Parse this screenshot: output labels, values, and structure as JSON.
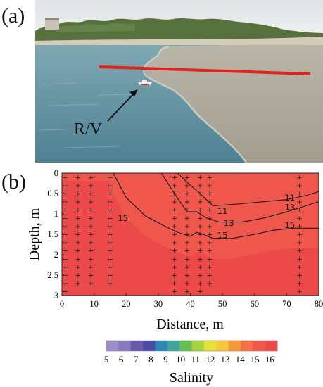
{
  "panel_a": {
    "label": "(a)",
    "annotation": "R/V",
    "colors": {
      "sky": "#e7e9ea",
      "trees": "#55703c",
      "beach": "#cfc7b4",
      "blue_water": "#5d8fa0",
      "turbid_water": "#a7a497",
      "transect": "#e0231a"
    }
  },
  "panel_b": {
    "label": "(b)"
  },
  "chart_data": {
    "type": "heatmap",
    "xlabel": "Distance, m",
    "ylabel": "Depth, m",
    "xlim": [
      0,
      80
    ],
    "ylim": [
      3,
      0
    ],
    "xticks": [
      0,
      10,
      20,
      30,
      40,
      50,
      60,
      70,
      80
    ],
    "yticks": [
      0,
      0.5,
      1,
      1.5,
      2,
      2.5,
      3
    ],
    "contour_labels": [
      {
        "text": "15",
        "x": 19,
        "y": 1.1
      },
      {
        "text": "11",
        "x": 50,
        "y": 0.93
      },
      {
        "text": "13",
        "x": 52,
        "y": 1.22
      },
      {
        "text": "15",
        "x": 50,
        "y": 1.53
      },
      {
        "text": "11",
        "x": 71,
        "y": 0.6
      },
      {
        "text": "13",
        "x": 71,
        "y": 0.84
      },
      {
        "text": "15",
        "x": 71,
        "y": 1.28
      }
    ],
    "contours": [
      {
        "value": 11,
        "x": [
          36,
          40,
          43,
          47,
          56,
          63,
          70,
          76,
          80
        ],
        "y": [
          0.0,
          0.3,
          0.5,
          0.8,
          0.75,
          0.7,
          0.65,
          0.55,
          0.45
        ]
      },
      {
        "value": 13,
        "x": [
          31,
          35,
          39,
          42,
          45,
          49,
          56,
          63,
          70,
          76,
          80
        ],
        "y": [
          0.0,
          0.5,
          0.95,
          0.95,
          1.1,
          1.2,
          1.2,
          1.1,
          0.95,
          0.8,
          0.7
        ]
      },
      {
        "value": 15,
        "x": [
          16,
          20,
          26,
          32,
          36,
          40,
          42,
          44,
          47,
          53,
          60,
          66,
          72,
          80
        ],
        "y": [
          0.0,
          0.6,
          1.05,
          1.3,
          1.45,
          1.55,
          1.45,
          1.5,
          1.6,
          1.6,
          1.5,
          1.4,
          1.35,
          1.35
        ]
      }
    ],
    "sample_profiles": [
      {
        "x": 1,
        "depths": [
          0.1,
          0.3,
          0.5,
          0.7,
          0.9,
          1.1,
          1.3,
          1.5,
          1.7,
          1.9,
          2.1,
          2.3,
          2.5,
          2.7,
          2.9
        ]
      },
      {
        "x": 5,
        "depths": [
          0.1,
          0.3,
          0.5,
          0.7,
          0.9,
          1.1,
          1.3,
          1.5,
          1.7,
          1.9,
          2.1,
          2.3,
          2.5,
          2.7
        ]
      },
      {
        "x": 9,
        "depths": [
          0.1,
          0.3,
          0.5,
          0.7,
          0.9,
          1.1,
          1.3,
          1.5,
          1.7,
          1.9,
          2.1,
          2.3,
          2.5,
          2.7
        ]
      },
      {
        "x": 15,
        "depths": [
          0.1,
          0.3,
          0.5,
          0.7,
          0.9,
          1.1,
          1.3,
          1.5,
          1.7,
          1.9,
          2.1,
          2.3,
          2.5,
          2.7
        ]
      },
      {
        "x": 35,
        "depths": [
          0.1,
          0.3,
          0.5,
          0.7,
          0.9,
          1.1,
          1.3,
          1.5,
          1.7,
          1.9,
          2.1,
          2.3,
          2.5,
          2.7,
          2.9
        ]
      },
      {
        "x": 39,
        "depths": [
          0.1,
          0.3,
          0.5,
          0.7,
          0.9,
          1.1,
          1.3,
          1.5,
          1.7,
          1.9,
          2.1,
          2.3,
          2.5,
          2.7,
          2.9
        ]
      },
      {
        "x": 43,
        "depths": [
          0.1,
          0.3,
          0.5,
          0.7,
          0.9,
          1.1,
          1.3,
          1.5,
          1.7,
          1.9,
          2.1,
          2.3,
          2.5,
          2.7,
          2.9
        ]
      },
      {
        "x": 46,
        "depths": [
          0.1,
          0.3,
          0.5,
          0.7,
          0.9,
          1.1,
          1.3,
          1.5,
          1.7,
          1.9,
          2.1,
          2.3,
          2.5,
          2.7
        ]
      },
      {
        "x": 74,
        "depths": [
          0.1,
          0.3,
          0.5,
          0.7,
          0.9,
          1.1,
          1.3,
          1.5,
          1.7,
          1.9,
          2.1,
          2.3,
          2.5,
          2.7,
          2.9
        ]
      }
    ],
    "colorbar": {
      "label": "Salinity",
      "ticks": [
        5,
        6,
        7,
        8,
        9,
        10,
        11,
        12,
        13,
        14,
        15,
        16
      ],
      "range": [
        5,
        16.5
      ],
      "colors": [
        "#a08cc8",
        "#8a78be",
        "#6a58aa",
        "#4a4ba4",
        "#2f86b8",
        "#3fa49c",
        "#66bc55",
        "#a8d240",
        "#e8e238",
        "#f9c83a",
        "#f7993a",
        "#f37244",
        "#ef574c",
        "#ec4a4a"
      ]
    }
  }
}
